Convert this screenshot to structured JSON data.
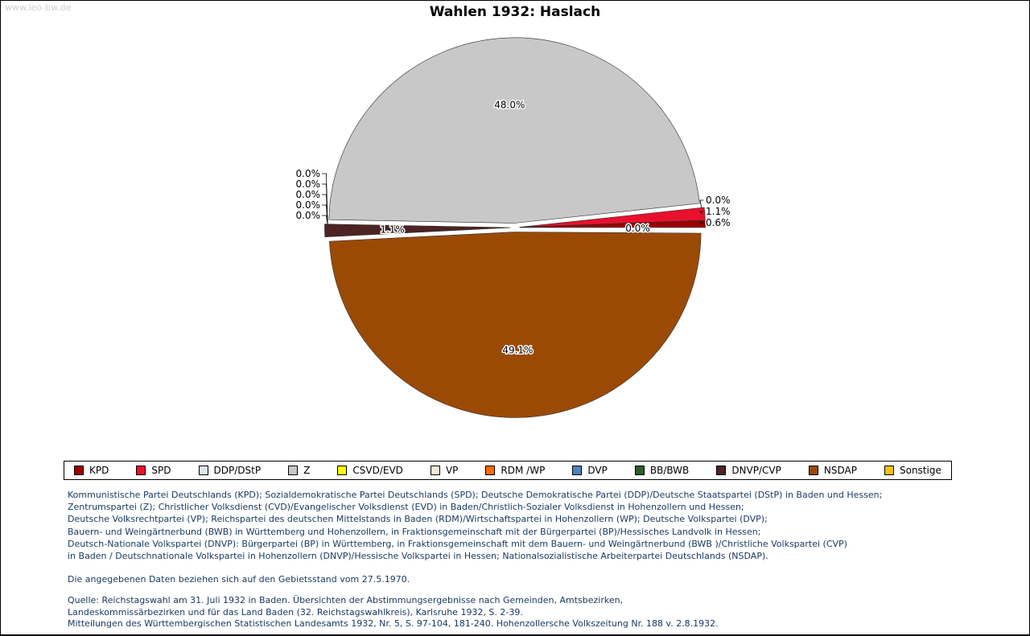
{
  "watermark": "www.leo-bw.de",
  "chart_data": {
    "type": "pie",
    "title": "Wahlen 1932: Haslach",
    "legend_position": "bottom",
    "direction": "counterclockwise",
    "start_angle_deg": 0,
    "series": [
      {
        "name": "KPD",
        "value": 0.6,
        "label": "0.6%",
        "color": "#9b0000",
        "callout": "right"
      },
      {
        "name": "SPD",
        "value": 1.1,
        "label": "1.1%",
        "color": "#e8112d",
        "callout": "right"
      },
      {
        "name": "DDP/DStP",
        "value": 0.0,
        "label": "0.0%",
        "color": "#dce6f2",
        "callout": "right"
      },
      {
        "name": "Z",
        "value": 48.0,
        "label": "48.0%",
        "color": "#c8c8c8",
        "callout": "inside"
      },
      {
        "name": "CSVD/EVD",
        "value": 0.0,
        "label": "0.0%",
        "color": "#ffff00",
        "callout": "left"
      },
      {
        "name": "VP",
        "value": 0.0,
        "label": "0.0%",
        "color": "#fbe5d6",
        "callout": "left"
      },
      {
        "name": "RDM /WP",
        "value": 0.0,
        "label": "0.0%",
        "color": "#ff6a00",
        "callout": "left"
      },
      {
        "name": "DVP",
        "value": 0.0,
        "label": "0.0%",
        "color": "#4f81bd",
        "callout": "left"
      },
      {
        "name": "BB/BWB",
        "value": 0.0,
        "label": "0.0%",
        "color": "#2d5e2d",
        "callout": "left"
      },
      {
        "name": "DNVP/CVP",
        "value": 1.1,
        "label": "1.1%",
        "color": "#4d2323",
        "callout": "inside"
      },
      {
        "name": "NSDAP",
        "value": 49.1,
        "label": "49.1%",
        "color": "#9b4a06",
        "callout": "inside"
      },
      {
        "name": "Sonstige",
        "value": 0.0,
        "label": "0.0%",
        "color": "#ffc000",
        "callout": "inside"
      }
    ]
  },
  "footnotes": {
    "party_explanations": [
      "Kommunistische Partei Deutschlands (KPD); Sozialdemokratische Partei Deutschlands (SPD); Deutsche Demokratische Partei (DDP)/Deutsche Staatspartei (DStP) in Baden und Hessen;",
      "Zentrumspartei (Z); Christlicher Volksdienst (CVD)/Evangelischer Volksdienst (EVD) in Baden/Christlich-Sozialer Volksdienst in Hohenzollern und Hessen;",
      "Deutsche Volksrechtpartei (VP); Reichspartei des deutschen Mittelstands in Baden (RDM)/Wirtschaftspartei in Hohenzollern (WP); Deutsche Volkspartei (DVP);",
      "Bauern- und Weingärtnerbund (BWB) in Württemberg und Hohenzollern, in Fraktionsgemeinschaft mit der Bürgerpartei (BP)/Hessisches Landvolk in Hessen;",
      "Deutsch-Nationale Volkspartei (DNVP): Bürgerpartei (BP) in Württemberg, in Fraktionsgemeinschaft mit dem Bauern- und Weingärtnerbund (BWB )/Christliche Volkspartei (CVP)",
      "in Baden / Deutschnationale Volkspartei in Hohenzollern (DNVP)/Hessische Volkspartei in Hessen; Nationalsozialistische Arbeiterpartei Deutschlands (NSDAP)."
    ],
    "territorial_note": "Die angegebenen Daten beziehen sich auf den Gebietsstand vom 27.5.1970.",
    "source_lines": [
      "Quelle: Reichstagswahl am 31. Juli 1932 in Baden. Übersichten der Abstimmungsergebnisse nach Gemeinden, Amtsbezirken,",
      "Landeskommissärbezirken und für das Land Baden (32. Reichstagswahlkreis), Karlsruhe 1932, S. 2-39.",
      "Mitteilungen des Württembergischen Statistischen Landesamts 1932, Nr. 5, S. 97-104, 181-240. Hohenzollersche Volkszeitung Nr. 188 v. 2.8.1932."
    ]
  }
}
